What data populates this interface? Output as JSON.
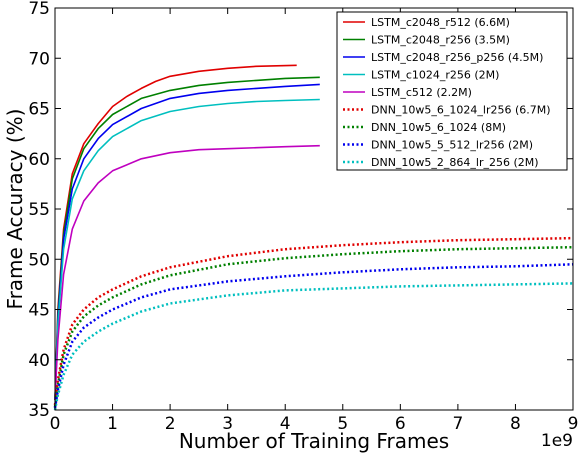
{
  "chart_data": {
    "type": "line",
    "title": "",
    "xlabel": "Number of Training Frames",
    "ylabel": "Frame Accuracy (%)",
    "x_offset_label": "1e9",
    "xlim": [
      0,
      9
    ],
    "ylim": [
      35,
      75
    ],
    "x_ticks": [
      0,
      1,
      2,
      3,
      4,
      5,
      6,
      7,
      8,
      9
    ],
    "y_ticks": [
      35,
      40,
      45,
      50,
      55,
      60,
      65,
      70,
      75
    ],
    "grid": false,
    "legend_position": "top-right",
    "series": [
      {
        "name": "LSTM_c2048_r512 (6.6M)",
        "color": "#e00000",
        "style": "solid",
        "x": [
          0,
          0.05,
          0.15,
          0.3,
          0.5,
          0.75,
          1.0,
          1.25,
          1.5,
          1.75,
          2.0,
          2.5,
          3.0,
          3.5,
          4.2
        ],
        "y": [
          36,
          45,
          53,
          58.5,
          61.5,
          63.5,
          65.2,
          66.2,
          67,
          67.7,
          68.2,
          68.7,
          69,
          69.2,
          69.3
        ]
      },
      {
        "name": "LSTM_c2048_r256 (3.5M)",
        "color": "#008000",
        "style": "solid",
        "x": [
          0,
          0.05,
          0.15,
          0.3,
          0.5,
          0.75,
          1.0,
          1.5,
          2.0,
          2.5,
          3.0,
          3.5,
          4.0,
          4.6
        ],
        "y": [
          36,
          44.5,
          52.5,
          58,
          61,
          63,
          64.4,
          66,
          66.8,
          67.3,
          67.6,
          67.8,
          68,
          68.1
        ]
      },
      {
        "name": "LSTM_c2048_r256_p256 (4.5M)",
        "color": "#0000ee",
        "style": "solid",
        "x": [
          0,
          0.05,
          0.15,
          0.3,
          0.5,
          0.75,
          1.0,
          1.5,
          2.0,
          2.5,
          3.0,
          3.5,
          4.0,
          4.6
        ],
        "y": [
          36,
          44,
          52,
          57,
          60,
          62,
          63.4,
          65,
          66,
          66.5,
          66.8,
          67,
          67.2,
          67.4
        ]
      },
      {
        "name": "LSTM_c1024_r256 (2M)",
        "color": "#00bfbf",
        "style": "solid",
        "x": [
          0,
          0.05,
          0.15,
          0.3,
          0.5,
          0.75,
          1.0,
          1.5,
          2.0,
          2.5,
          3.0,
          3.5,
          4.0,
          4.6
        ],
        "y": [
          36,
          43.5,
          51,
          56,
          58.8,
          60.8,
          62.2,
          63.8,
          64.7,
          65.2,
          65.5,
          65.7,
          65.8,
          65.9
        ]
      },
      {
        "name": "LSTM_c512 (2.2M)",
        "color": "#bf00bf",
        "style": "solid",
        "x": [
          0,
          0.05,
          0.15,
          0.3,
          0.5,
          0.75,
          1.0,
          1.5,
          2.0,
          2.5,
          3.0,
          3.5,
          4.0,
          4.6
        ],
        "y": [
          36,
          42,
          48.5,
          53,
          55.8,
          57.6,
          58.8,
          60,
          60.6,
          60.9,
          61,
          61.1,
          61.2,
          61.3
        ]
      },
      {
        "name": "DNN_10w5_6_1024_lr256 (6.7M)",
        "color": "#e00000",
        "style": "dotted",
        "x": [
          0,
          0.05,
          0.15,
          0.3,
          0.5,
          0.75,
          1.0,
          1.5,
          2.0,
          3.0,
          4.0,
          5.0,
          6.0,
          7.0,
          8.0,
          9.0
        ],
        "y": [
          35.5,
          38,
          41,
          43.5,
          45,
          46.2,
          47,
          48.3,
          49.2,
          50.3,
          51,
          51.4,
          51.7,
          51.9,
          52,
          52.1
        ]
      },
      {
        "name": "DNN_10w5_6_1024 (8M)",
        "color": "#008000",
        "style": "dotted",
        "x": [
          0,
          0.05,
          0.15,
          0.3,
          0.5,
          0.75,
          1.0,
          1.5,
          2.0,
          3.0,
          4.0,
          5.0,
          6.0,
          7.0,
          8.0,
          9.0
        ],
        "y": [
          35.3,
          37.5,
          40.5,
          42.8,
          44.3,
          45.4,
          46.2,
          47.5,
          48.4,
          49.5,
          50.1,
          50.5,
          50.8,
          51,
          51.1,
          51.2
        ]
      },
      {
        "name": "DNN_10w5_5_512_lr256 (2M)",
        "color": "#0000ee",
        "style": "dotted",
        "x": [
          0,
          0.05,
          0.15,
          0.3,
          0.5,
          0.75,
          1.0,
          1.5,
          2.0,
          3.0,
          4.0,
          5.0,
          6.0,
          7.0,
          8.0,
          9.0
        ],
        "y": [
          35.2,
          37,
          39.5,
          41.8,
          43.2,
          44.2,
          45,
          46.2,
          47,
          47.8,
          48.3,
          48.7,
          49,
          49.2,
          49.3,
          49.5
        ]
      },
      {
        "name": "DNN_10w5_2_864_lr_256 (2M)",
        "color": "#00bfbf",
        "style": "dotted",
        "x": [
          0,
          0.05,
          0.15,
          0.3,
          0.5,
          0.75,
          1.0,
          1.5,
          2.0,
          3.0,
          4.0,
          5.0,
          6.0,
          7.0,
          8.0,
          9.0
        ],
        "y": [
          35,
          36.5,
          38.5,
          40.5,
          41.8,
          42.8,
          43.6,
          44.8,
          45.6,
          46.4,
          46.9,
          47.1,
          47.3,
          47.4,
          47.5,
          47.6
        ]
      }
    ]
  }
}
